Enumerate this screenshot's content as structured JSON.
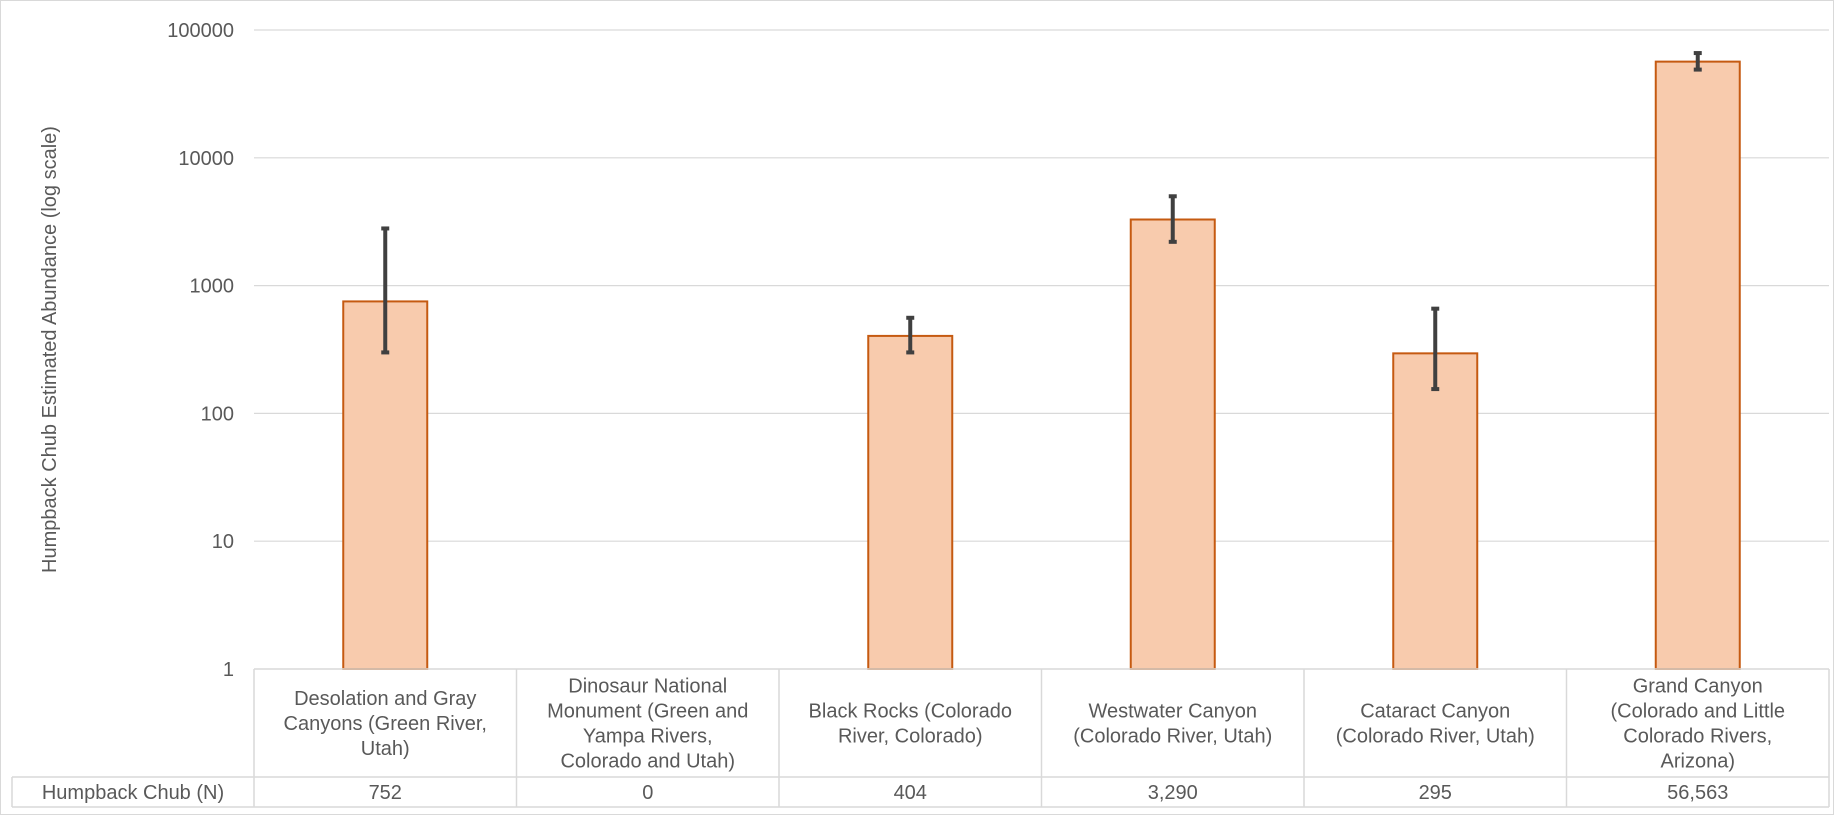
{
  "chart_data": {
    "type": "bar",
    "title": "",
    "xlabel": "",
    "ylabel": "Humpback Chub Estimated Abundance  (log scale)",
    "y_scale": "log",
    "ylim": [
      1,
      100000
    ],
    "y_ticks": [
      "1",
      "10",
      "100",
      "1000",
      "10000",
      "100000"
    ],
    "grid": true,
    "legend": "none",
    "categories": [
      [
        "Desolation and Gray",
        "Canyons (Green River,",
        "Utah)"
      ],
      [
        "Dinosaur National",
        "Monument (Green and",
        "Yampa Rivers,",
        "Colorado and Utah)"
      ],
      [
        "Black Rocks (Colorado",
        "River, Colorado)"
      ],
      [
        "Westwater Canyon",
        "(Colorado River, Utah)"
      ],
      [
        "Cataract Canyon",
        "(Colorado River, Utah)"
      ],
      [
        "Grand Canyon",
        "(Colorado and Little",
        "Colorado Rivers,",
        "Arizona)"
      ]
    ],
    "series": [
      {
        "name": "Humpback Chub (N)",
        "values": [
          752,
          0,
          404,
          3290,
          295,
          56563
        ],
        "display_values": [
          "752",
          "0",
          "404",
          "3,290",
          "295",
          "56,563"
        ],
        "error_low": [
          300,
          null,
          300,
          2200,
          155,
          49000
        ],
        "error_high": [
          2800,
          null,
          560,
          5000,
          660,
          66000
        ]
      }
    ],
    "colors": {
      "bar_fill": "#F8CBAD",
      "bar_stroke": "#C55A11",
      "error_bar": "#404040",
      "grid": "#D9D9D9",
      "table_border": "#D9D9D9",
      "text": "#595959"
    }
  }
}
